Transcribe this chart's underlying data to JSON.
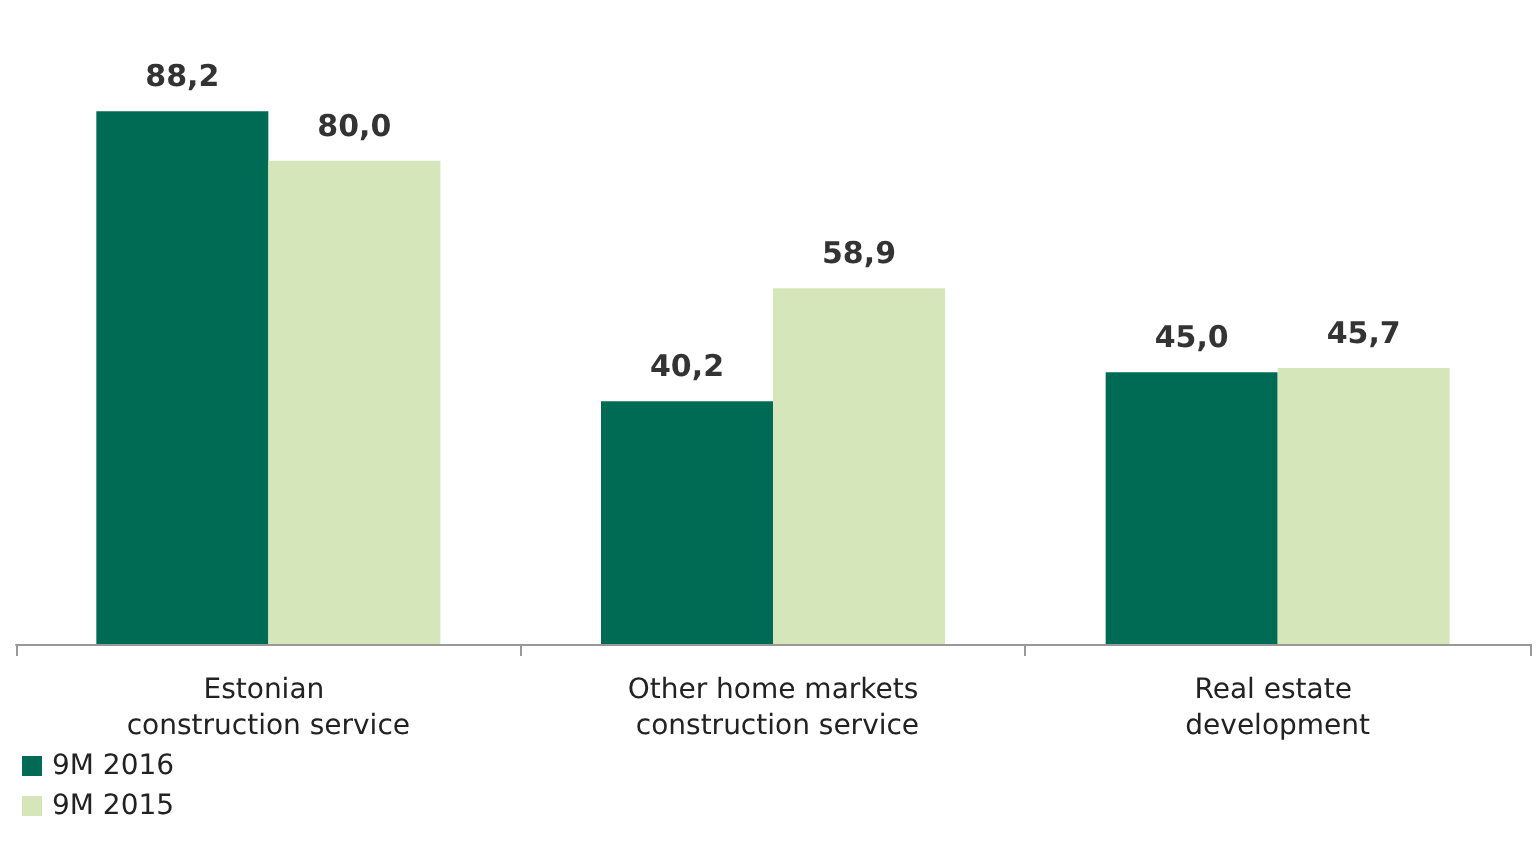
{
  "chart_data": {
    "type": "bar",
    "categories": [
      "Estonian construction service",
      "Other home markets construction service",
      "Real estate development"
    ],
    "series": [
      {
        "name": "9M 2016",
        "color": "#006b54",
        "values": [
          88.2,
          40.2,
          45.0
        ],
        "value_labels": [
          "88,2",
          "40,2",
          "45,0"
        ]
      },
      {
        "name": "9M 2015",
        "color": "#d6e6bb",
        "values": [
          80.0,
          58.9,
          45.7
        ],
        "value_labels": [
          "80,0",
          "58,9",
          "45,7"
        ]
      }
    ],
    "legend": "bottom left",
    "grid": false,
    "tick_labels": "x"
  }
}
